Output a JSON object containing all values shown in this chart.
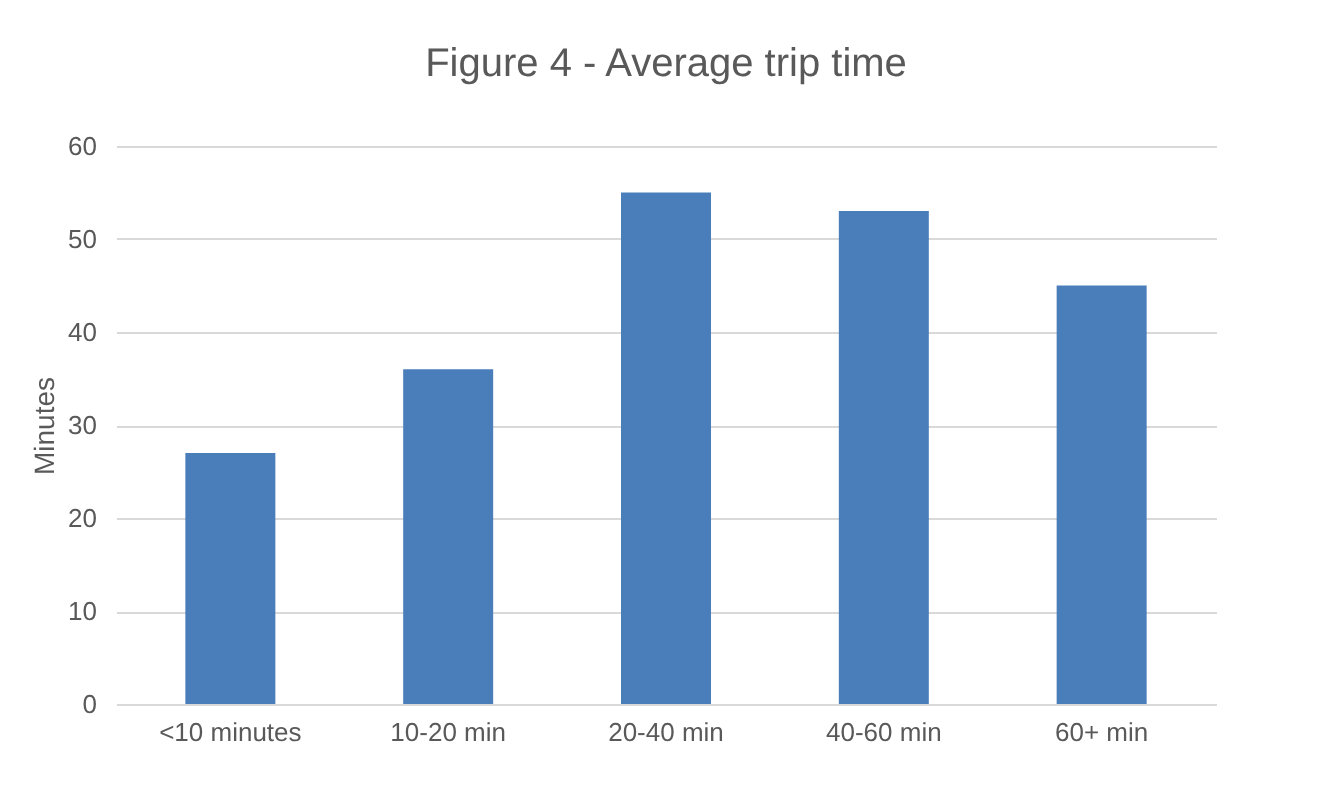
{
  "chart_data": {
    "type": "bar",
    "title": "Figure 4 - Average trip time",
    "ylabel": "Minutes",
    "categories": [
      "<10 minutes",
      "10-20 min",
      "20-40 min",
      "40-60 min",
      "60+ min"
    ],
    "values": [
      27,
      36,
      55,
      53,
      45
    ],
    "color": "#4a7ebb",
    "ylim": [
      0,
      60
    ],
    "yticks": [
      0,
      10,
      20,
      30,
      40,
      50,
      60
    ],
    "grid": "y"
  }
}
